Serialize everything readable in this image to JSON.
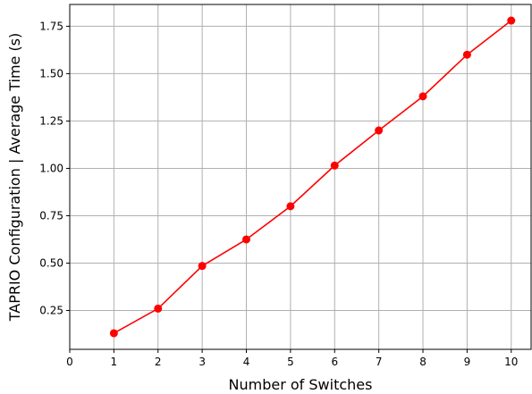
{
  "chart_data": {
    "type": "line",
    "title": "",
    "xlabel": "Number of Switches",
    "ylabel": "TAPRIO Configuration | Average Time (s)",
    "x": [
      1,
      2,
      3,
      4,
      5,
      6,
      7,
      8,
      9,
      10
    ],
    "series": [
      {
        "values": [
          0.13,
          0.26,
          0.485,
          0.625,
          0.8,
          1.015,
          1.2,
          1.38,
          1.6,
          1.78
        ],
        "color": "#ff0000",
        "marker": "circle"
      }
    ],
    "xlim": [
      0,
      10.45
    ],
    "ylim": [
      0.045,
      1.865
    ],
    "xticks": [
      0,
      1,
      2,
      3,
      4,
      5,
      6,
      7,
      8,
      9,
      10
    ],
    "yticks": [
      0.25,
      0.5,
      0.75,
      1.0,
      1.25,
      1.5,
      1.75
    ],
    "xtick_labels": [
      "0",
      "1",
      "2",
      "3",
      "4",
      "5",
      "6",
      "7",
      "8",
      "9",
      "10"
    ],
    "ytick_labels": [
      "0.25",
      "0.50",
      "0.75",
      "1.00",
      "1.25",
      "1.50",
      "1.75"
    ],
    "grid": true,
    "legend": "none"
  }
}
